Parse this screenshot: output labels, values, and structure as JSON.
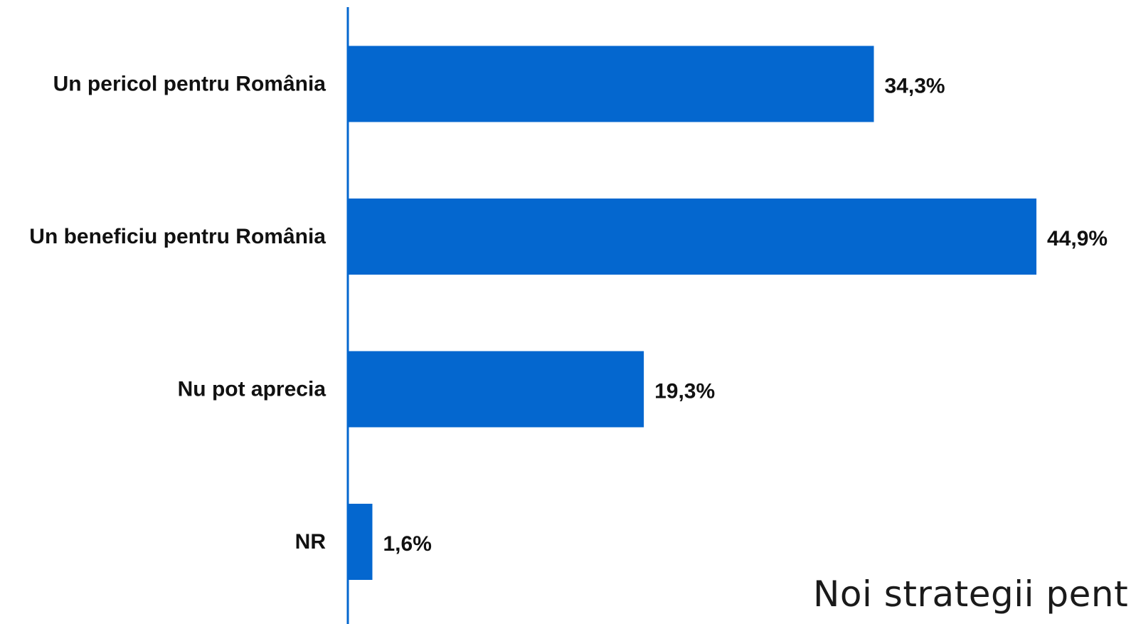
{
  "chart_data": {
    "type": "bar",
    "orientation": "horizontal",
    "categories": [
      "Un pericol pentru România",
      "Un beneficiu pentru România",
      "Nu pot aprecia",
      "NR"
    ],
    "values": [
      34.3,
      44.9,
      19.3,
      1.6
    ],
    "value_labels": [
      "34,3%",
      "44,9%",
      "19,3%",
      "1,6%"
    ],
    "unit": "%",
    "xlim": [
      0,
      45
    ],
    "grid": false,
    "legend": "none",
    "bar_color": "#0467CF",
    "axis_color": "#0467CF"
  },
  "footer": {
    "text": "Noi strategii pent"
  }
}
